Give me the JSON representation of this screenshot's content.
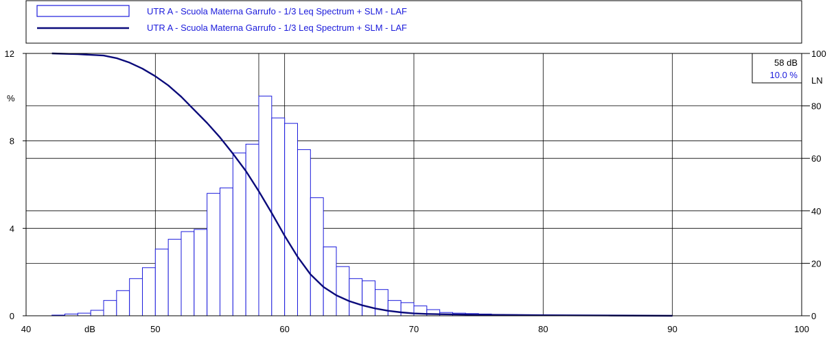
{
  "chart_data": {
    "type": "bar",
    "legend": {
      "placement": "top",
      "entries": [
        {
          "label": "UTR A - Scuola Materna Garrufo - 1/3 Leq Spectrum + SLM - LAF",
          "kind": "bar"
        },
        {
          "label": "UTR A - Scuola Materna Garrufo - 1/3 Leq Spectrum + SLM - LAF",
          "kind": "line"
        }
      ]
    },
    "xlabel": "dB",
    "ylabel_left": "%",
    "ylabel_right": "LN",
    "xlim": [
      40,
      100
    ],
    "ylim_left": [
      0,
      12
    ],
    "ylim_right": [
      0,
      100
    ],
    "x_ticks": [
      "40",
      "50",
      "60",
      "70",
      "80",
      "90",
      "100"
    ],
    "y_left_ticks": [
      "0",
      "4",
      "8",
      "12"
    ],
    "y_right_ticks": [
      "0",
      "20",
      "40",
      "60",
      "80",
      "100"
    ],
    "grid": true,
    "cursor": {
      "x": 58,
      "value_label": "58 dB",
      "percent_label": "10.0 %"
    },
    "colors": {
      "bar_edge": "#1a1adb",
      "line": "#0a0a7a",
      "text": "#1a1adb",
      "grid": "#000000"
    },
    "bar_width": 1,
    "series": [
      {
        "kind": "bar",
        "x": [
          41.5,
          42.5,
          43.5,
          44.5,
          45.5,
          46.5,
          47.5,
          48.5,
          49.5,
          50.5,
          51.5,
          52.5,
          53.5,
          54.5,
          55.5,
          56.5,
          57.5,
          58.5,
          59.5,
          60.5,
          61.5,
          62.5,
          63.5,
          64.5,
          65.5,
          66.5,
          67.5,
          68.5,
          69.5,
          70.5,
          71.5,
          72.5,
          73.5,
          74.5,
          75.5,
          76.5,
          77.5,
          78.5,
          79.5,
          80.5,
          81.5,
          82.5,
          83.5,
          84.5,
          85.5,
          86.5,
          87.5,
          88.5,
          89.5
        ],
        "values": [
          0.0,
          0.03,
          0.08,
          0.12,
          0.25,
          0.7,
          1.15,
          1.7,
          2.2,
          3.05,
          3.5,
          3.85,
          3.95,
          5.6,
          5.85,
          7.45,
          7.85,
          10.05,
          9.05,
          8.8,
          7.6,
          5.4,
          3.15,
          2.25,
          1.7,
          1.6,
          1.2,
          0.7,
          0.6,
          0.45,
          0.28,
          0.15,
          0.12,
          0.1,
          0.08,
          0.06,
          0.05,
          0.04,
          0.04,
          0.03,
          0.03,
          0.02,
          0.02,
          0.02,
          0.01,
          0.01,
          0.01,
          0.01,
          0.01
        ]
      },
      {
        "kind": "line",
        "x": [
          42,
          44,
          46,
          47,
          48,
          49,
          50,
          51,
          52,
          53,
          54,
          55,
          56,
          57,
          58,
          59,
          60,
          61,
          62,
          63,
          64,
          65,
          66,
          67,
          68,
          69,
          70,
          71,
          72,
          75,
          80,
          85,
          90
        ],
        "values": [
          100,
          99.7,
          99.2,
          98.2,
          96.5,
          94.2,
          91.3,
          87.8,
          83.5,
          78.5,
          73.5,
          68,
          61.8,
          55.2,
          47.5,
          39.2,
          30.5,
          22.5,
          15.8,
          11,
          7.8,
          5.6,
          4,
          2.8,
          1.9,
          1.3,
          0.9,
          0.7,
          0.6,
          0.4,
          0.2,
          0.1,
          0
        ]
      }
    ]
  }
}
